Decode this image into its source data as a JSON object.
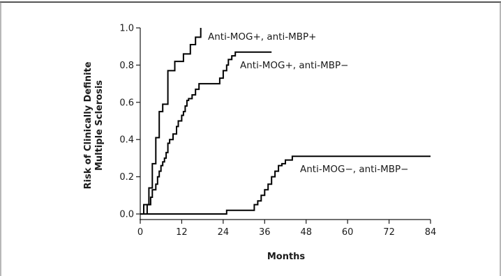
{
  "chart_data": {
    "type": "line",
    "step": true,
    "xlabel": "Months",
    "ylabel": [
      "Risk of Clinically Definite",
      "Multiple Sclerosis"
    ],
    "xlim": [
      0,
      84
    ],
    "ylim": [
      0,
      1.0
    ],
    "xticks": [
      0,
      12,
      24,
      36,
      48,
      60,
      72,
      84
    ],
    "xtick_labels": [
      "0",
      "12",
      "24",
      "36",
      "48",
      "60",
      "72",
      "84"
    ],
    "yticks": [
      0,
      0.2,
      0.4,
      0.6,
      0.8,
      1.0
    ],
    "ytick_labels": [
      "0.0",
      "0.2",
      "0.4",
      "0.6",
      "0.8",
      "1.0"
    ],
    "grid": false,
    "series": [
      {
        "name": "Anti-MOG+, anti-MBP+",
        "points": [
          [
            0,
            0
          ],
          [
            1,
            0
          ],
          [
            1,
            0.05
          ],
          [
            2,
            0.05
          ],
          [
            2.5,
            0.14
          ],
          [
            3,
            0.14
          ],
          [
            3.5,
            0.27
          ],
          [
            4.5,
            0.27
          ],
          [
            4.5,
            0.41
          ],
          [
            5.5,
            0.41
          ],
          [
            5.5,
            0.55
          ],
          [
            6.5,
            0.55
          ],
          [
            6.5,
            0.59
          ],
          [
            7.5,
            0.59
          ],
          [
            8,
            0.77
          ],
          [
            10,
            0.77
          ],
          [
            10,
            0.82
          ],
          [
            12.5,
            0.82
          ],
          [
            12.5,
            0.86
          ],
          [
            14,
            0.86
          ],
          [
            14.5,
            0.91
          ],
          [
            16,
            0.91
          ],
          [
            16,
            0.95
          ],
          [
            17.5,
            0.95
          ],
          [
            17.5,
            1.0
          ]
        ]
      },
      {
        "name": "Anti-MOG+, anti-MBP−",
        "points": [
          [
            0,
            0
          ],
          [
            2,
            0
          ],
          [
            2,
            0.05
          ],
          [
            3,
            0.09
          ],
          [
            3.5,
            0.13
          ],
          [
            4.5,
            0.16
          ],
          [
            5,
            0.2
          ],
          [
            5.5,
            0.23
          ],
          [
            6,
            0.26
          ],
          [
            6.5,
            0.28
          ],
          [
            7,
            0.3
          ],
          [
            7.5,
            0.33
          ],
          [
            8,
            0.38
          ],
          [
            8.5,
            0.4
          ],
          [
            9.5,
            0.43
          ],
          [
            10.5,
            0.47
          ],
          [
            11,
            0.5
          ],
          [
            12,
            0.53
          ],
          [
            12.5,
            0.55
          ],
          [
            13,
            0.58
          ],
          [
            13.5,
            0.61
          ],
          [
            14,
            0.62
          ],
          [
            15,
            0.64
          ],
          [
            16,
            0.67
          ],
          [
            17,
            0.7
          ],
          [
            22,
            0.7
          ],
          [
            23,
            0.73
          ],
          [
            24,
            0.77
          ],
          [
            25,
            0.8
          ],
          [
            25.5,
            0.83
          ],
          [
            26.5,
            0.85
          ],
          [
            27.5,
            0.87
          ],
          [
            38,
            0.87
          ]
        ]
      },
      {
        "name": "Anti-MOG−, anti-MBP−",
        "points": [
          [
            0,
            0
          ],
          [
            25,
            0
          ],
          [
            25,
            0.02
          ],
          [
            32,
            0.02
          ],
          [
            33,
            0.05
          ],
          [
            34,
            0.07
          ],
          [
            35,
            0.1
          ],
          [
            36,
            0.13
          ],
          [
            37,
            0.16
          ],
          [
            38,
            0.2
          ],
          [
            39,
            0.23
          ],
          [
            40,
            0.26
          ],
          [
            41,
            0.27
          ],
          [
            42,
            0.29
          ],
          [
            44,
            0.31
          ],
          [
            84,
            0.31
          ]
        ]
      }
    ]
  }
}
